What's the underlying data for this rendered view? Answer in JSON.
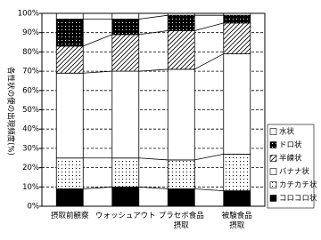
{
  "chart_data": {
    "type": "stacked-bar",
    "y_label": "各性状の便の出現頻度(%)",
    "categories": [
      "摂取前観察",
      "ウォッシュアウト",
      "プラセボ食品\n摂取",
      "被験食品\n摂取"
    ],
    "series": [
      {
        "name": "コロコロ状",
        "color": "#000000",
        "pattern": "solid",
        "values": [
          9,
          10,
          9,
          8
        ]
      },
      {
        "name": "カチカチ状",
        "color": "#000000",
        "pattern": "dots",
        "values": [
          16,
          15,
          15,
          19
        ]
      },
      {
        "name": "バナナ状",
        "color": "#ffffff",
        "pattern": "solid",
        "values": [
          44,
          45,
          47,
          52
        ]
      },
      {
        "name": "半練状",
        "color": "#000000",
        "pattern": "hatch",
        "values": [
          14,
          19,
          20,
          16
        ]
      },
      {
        "name": "ドロ状",
        "color": "#000000",
        "pattern": "white-dots",
        "values": [
          14,
          8,
          8,
          4
        ]
      },
      {
        "name": "水状",
        "color": "#ffffff",
        "pattern": "solid",
        "values": [
          3,
          3,
          1,
          1
        ]
      }
    ],
    "ylim": [
      0,
      100
    ],
    "yticks": [
      {
        "value": 0,
        "label": "0%"
      },
      {
        "value": 10,
        "label": "10%"
      },
      {
        "value": 20,
        "label": "20%"
      },
      {
        "value": 30,
        "label": "30%"
      },
      {
        "value": 40,
        "label": "40%"
      },
      {
        "value": 50,
        "label": "50%"
      },
      {
        "value": 60,
        "label": "60%"
      },
      {
        "value": 70,
        "label": "70%"
      },
      {
        "value": 80,
        "label": "80%"
      },
      {
        "value": 90,
        "label": "90%"
      },
      {
        "value": 100,
        "label": "100%"
      }
    ],
    "grid": true,
    "legend": "right"
  }
}
